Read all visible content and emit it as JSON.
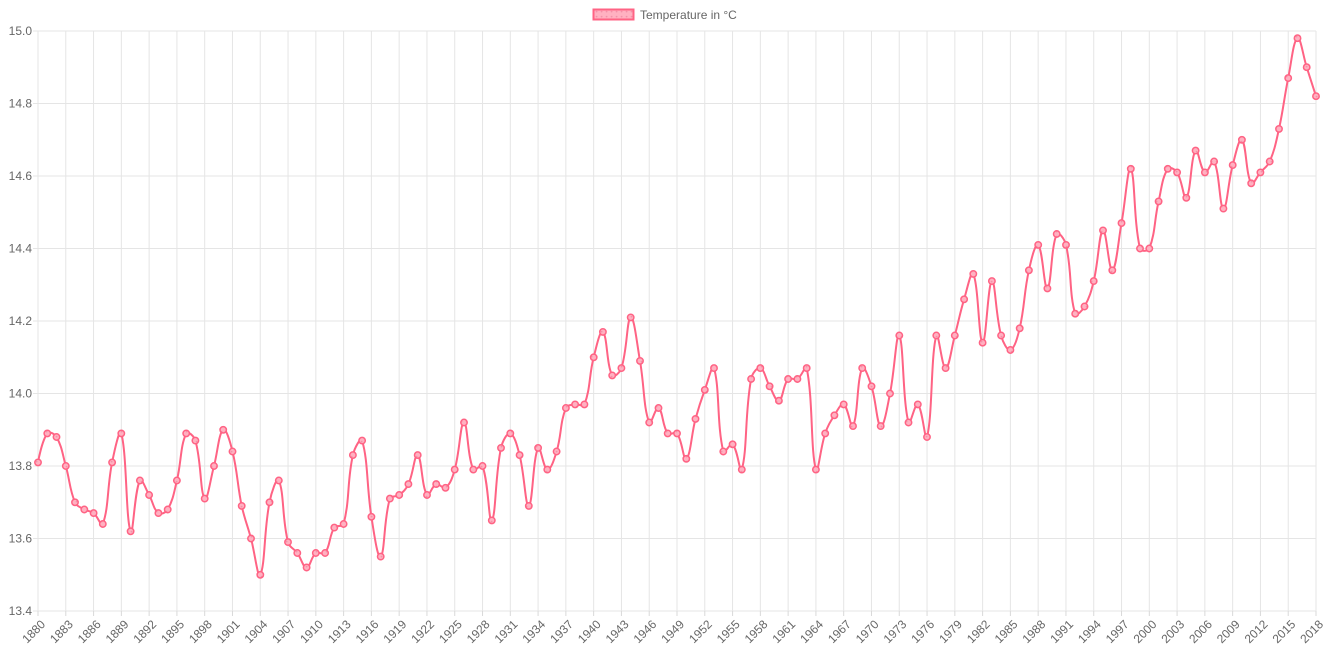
{
  "chart_data": {
    "type": "line",
    "title": "",
    "legend_label": "Temperature in °C",
    "legend_position": "top-center",
    "grid": true,
    "xlabel": "",
    "ylabel": "",
    "ylim": [
      13.4,
      15.0
    ],
    "y_tick_step": 0.2,
    "y_tick_labels": [
      "13.4",
      "13.6",
      "13.8",
      "14.0",
      "14.2",
      "14.4",
      "14.6",
      "14.8",
      "15.0"
    ],
    "x_tick_step": 3,
    "x_tick_years": [
      1880,
      1883,
      1886,
      1889,
      1892,
      1895,
      1898,
      1901,
      1904,
      1907,
      1910,
      1913,
      1916,
      1919,
      1922,
      1925,
      1928,
      1931,
      1934,
      1937,
      1940,
      1943,
      1946,
      1949,
      1952,
      1955,
      1958,
      1961,
      1964,
      1967,
      1970,
      1973,
      1976,
      1979,
      1982,
      1985,
      1988,
      1991,
      1994,
      1997,
      2000,
      2003,
      2006,
      2009,
      2012,
      2015,
      2018
    ],
    "line_tension": 0.4,
    "point_style": "circle",
    "years": [
      1880,
      1881,
      1882,
      1883,
      1884,
      1885,
      1886,
      1887,
      1888,
      1889,
      1890,
      1891,
      1892,
      1893,
      1894,
      1895,
      1896,
      1897,
      1898,
      1899,
      1900,
      1901,
      1902,
      1903,
      1904,
      1905,
      1906,
      1907,
      1908,
      1909,
      1910,
      1911,
      1912,
      1913,
      1914,
      1915,
      1916,
      1917,
      1918,
      1919,
      1920,
      1921,
      1922,
      1923,
      1924,
      1925,
      1926,
      1927,
      1928,
      1929,
      1930,
      1931,
      1932,
      1933,
      1934,
      1935,
      1936,
      1937,
      1938,
      1939,
      1940,
      1941,
      1942,
      1943,
      1944,
      1945,
      1946,
      1947,
      1948,
      1949,
      1950,
      1951,
      1952,
      1953,
      1954,
      1955,
      1956,
      1957,
      1958,
      1959,
      1960,
      1961,
      1962,
      1963,
      1964,
      1965,
      1966,
      1967,
      1968,
      1969,
      1970,
      1971,
      1972,
      1973,
      1974,
      1975,
      1976,
      1977,
      1978,
      1979,
      1980,
      1981,
      1982,
      1983,
      1984,
      1985,
      1986,
      1987,
      1988,
      1989,
      1990,
      1991,
      1992,
      1993,
      1994,
      1995,
      1996,
      1997,
      1998,
      1999,
      2000,
      2001,
      2002,
      2003,
      2004,
      2005,
      2006,
      2007,
      2008,
      2009,
      2010,
      2011,
      2012,
      2013,
      2014,
      2015,
      2016,
      2017,
      2018
    ],
    "series": [
      {
        "name": "Temperature in °C",
        "values": [
          13.81,
          13.89,
          13.88,
          13.8,
          13.7,
          13.68,
          13.67,
          13.64,
          13.81,
          13.89,
          13.62,
          13.76,
          13.72,
          13.67,
          13.68,
          13.76,
          13.89,
          13.87,
          13.71,
          13.8,
          13.9,
          13.84,
          13.69,
          13.6,
          13.5,
          13.7,
          13.76,
          13.59,
          13.56,
          13.52,
          13.56,
          13.56,
          13.63,
          13.64,
          13.83,
          13.87,
          13.66,
          13.55,
          13.71,
          13.72,
          13.75,
          13.83,
          13.72,
          13.75,
          13.74,
          13.79,
          13.92,
          13.79,
          13.8,
          13.65,
          13.85,
          13.89,
          13.83,
          13.69,
          13.85,
          13.79,
          13.84,
          13.96,
          13.97,
          13.97,
          14.1,
          14.17,
          14.05,
          14.07,
          14.21,
          14.09,
          13.92,
          13.96,
          13.89,
          13.89,
          13.82,
          13.93,
          14.01,
          14.07,
          13.84,
          13.86,
          13.79,
          14.04,
          14.07,
          14.02,
          13.98,
          14.04,
          14.04,
          14.07,
          13.79,
          13.89,
          13.94,
          13.97,
          13.91,
          14.07,
          14.02,
          13.91,
          14.0,
          14.16,
          13.92,
          13.97,
          13.88,
          14.16,
          14.07,
          14.16,
          14.26,
          14.33,
          14.14,
          14.31,
          14.16,
          14.12,
          14.18,
          14.34,
          14.41,
          14.29,
          14.44,
          14.41,
          14.22,
          14.24,
          14.31,
          14.45,
          14.34,
          14.47,
          14.62,
          14.4,
          14.4,
          14.53,
          14.62,
          14.61,
          14.54,
          14.67,
          14.61,
          14.64,
          14.51,
          14.63,
          14.7,
          14.58,
          14.61,
          14.64,
          14.73,
          14.87,
          14.98,
          14.9,
          14.82
        ]
      }
    ],
    "colors": {
      "line": "#ff6384",
      "point_fill": "#ffb1c1",
      "point_dot": "#f290a8",
      "grid": "#e5e5e5",
      "tick": "#d9d9d9",
      "text": "#666666",
      "background": "#ffffff"
    }
  }
}
